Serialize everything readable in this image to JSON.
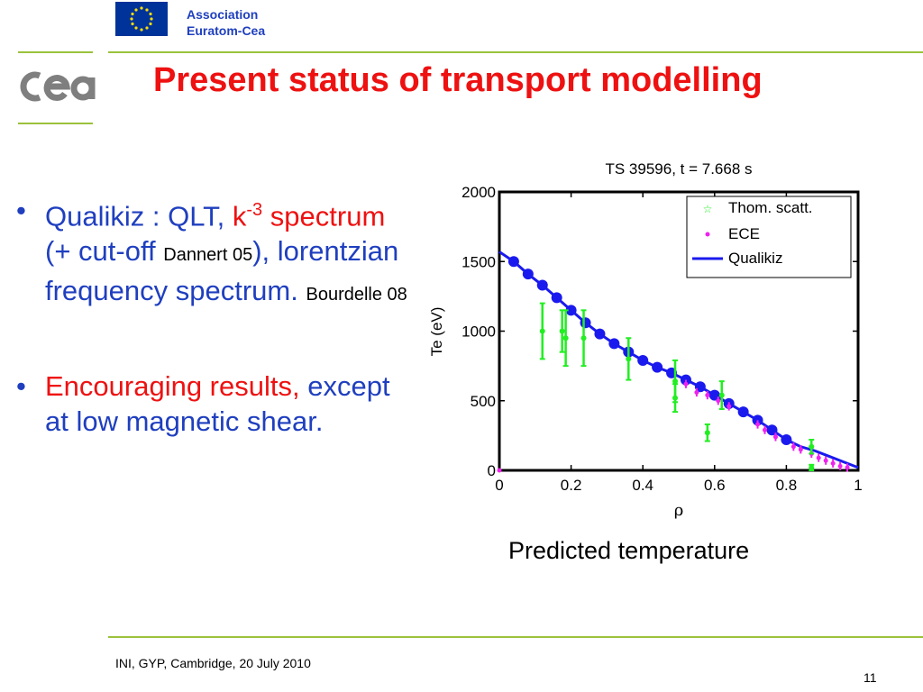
{
  "header": {
    "association_line1": "Association",
    "association_line2": "Euratom-Cea",
    "title": "Present status of transport modelling"
  },
  "bullets": {
    "b1_part1": "Qualikiz : QLT, ",
    "b1_k": "k",
    "b1_exp": "-3",
    "b1_spectrum": "spectrum",
    "b1_part2": " (+ cut-off",
    "b1_ref1": "Dannert 05",
    "b1_part3": "), lorentzian frequency spectrum.",
    "b1_ref2": "Bourdelle 08",
    "b2_red": "Encouraging results,",
    "b2_rest": " except at low magnetic shear."
  },
  "chart_data": {
    "type": "scatter",
    "title": "TS 39596, t = 7.668 s",
    "xlabel": "ρ",
    "ylabel": "Te (eV)",
    "xlim": [
      0,
      1
    ],
    "ylim": [
      0,
      2000
    ],
    "xticks": [
      "0",
      "0.2",
      "0.4",
      "0.6",
      "0.8",
      "1"
    ],
    "yticks": [
      "0",
      "500",
      "1000",
      "1500",
      "2000"
    ],
    "legend_position": "top-right",
    "series": [
      {
        "name": "Thom. scatt.",
        "color": "#22ee22",
        "points": [
          {
            "x": 0.12,
            "y": 1000,
            "err": 200
          },
          {
            "x": 0.175,
            "y": 1000,
            "err": 150
          },
          {
            "x": 0.185,
            "y": 950,
            "err": 200
          },
          {
            "x": 0.235,
            "y": 950,
            "err": 200
          },
          {
            "x": 0.36,
            "y": 800,
            "err": 150
          },
          {
            "x": 0.49,
            "y": 640,
            "err": 150
          },
          {
            "x": 0.49,
            "y": 520,
            "err": 100
          },
          {
            "x": 0.58,
            "y": 270,
            "err": 60
          },
          {
            "x": 0.62,
            "y": 540,
            "err": 100
          },
          {
            "x": 0.87,
            "y": 170,
            "err": 50
          },
          {
            "x": 0.87,
            "y": 20,
            "err": 20
          }
        ]
      },
      {
        "name": "ECE",
        "color": "#ee22ee",
        "points": [
          {
            "x": 0.0,
            "y": 0,
            "err": 0
          },
          {
            "x": 0.49,
            "y": 640,
            "err": 30
          },
          {
            "x": 0.52,
            "y": 620,
            "err": 30
          },
          {
            "x": 0.55,
            "y": 560,
            "err": 30
          },
          {
            "x": 0.58,
            "y": 540,
            "err": 30
          },
          {
            "x": 0.61,
            "y": 500,
            "err": 30
          },
          {
            "x": 0.64,
            "y": 460,
            "err": 30
          },
          {
            "x": 0.72,
            "y": 330,
            "err": 30
          },
          {
            "x": 0.74,
            "y": 290,
            "err": 30
          },
          {
            "x": 0.77,
            "y": 240,
            "err": 30
          },
          {
            "x": 0.82,
            "y": 170,
            "err": 30
          },
          {
            "x": 0.84,
            "y": 150,
            "err": 30
          },
          {
            "x": 0.87,
            "y": 120,
            "err": 30
          },
          {
            "x": 0.89,
            "y": 90,
            "err": 30
          },
          {
            "x": 0.91,
            "y": 70,
            "err": 30
          },
          {
            "x": 0.93,
            "y": 50,
            "err": 30
          },
          {
            "x": 0.95,
            "y": 30,
            "err": 30
          },
          {
            "x": 0.97,
            "y": 20,
            "err": 30
          }
        ]
      },
      {
        "name": "Qualikiz",
        "color": "#1a1aee",
        "x": [
          0.0,
          0.04,
          0.08,
          0.12,
          0.16,
          0.2,
          0.24,
          0.28,
          0.32,
          0.36,
          0.4,
          0.44,
          0.48,
          0.52,
          0.56,
          0.6,
          0.64,
          0.68,
          0.72,
          0.76,
          0.8,
          0.84,
          0.88,
          0.92,
          0.96,
          1.0
        ],
        "y": [
          1570,
          1500,
          1410,
          1330,
          1240,
          1150,
          1060,
          980,
          910,
          850,
          790,
          740,
          700,
          650,
          600,
          540,
          480,
          420,
          360,
          290,
          220,
          170,
          140,
          100,
          60,
          20
        ]
      }
    ],
    "markers_x": [
      0.04,
      0.08,
      0.12,
      0.16,
      0.2,
      0.24,
      0.28,
      0.32,
      0.36,
      0.4,
      0.44,
      0.48,
      0.52,
      0.56,
      0.6,
      0.64,
      0.68,
      0.72,
      0.76,
      0.8
    ]
  },
  "caption": "Predicted temperature",
  "footer": {
    "text": "INI, GYP, Cambridge, 20 July 2010",
    "page": "11"
  }
}
